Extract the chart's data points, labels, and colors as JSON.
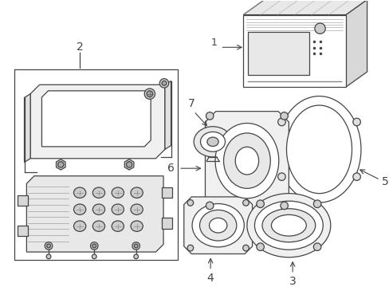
{
  "background_color": "#ffffff",
  "line_color": "#444444",
  "figsize": [
    4.89,
    3.6
  ],
  "dpi": 100,
  "font_size": 9
}
